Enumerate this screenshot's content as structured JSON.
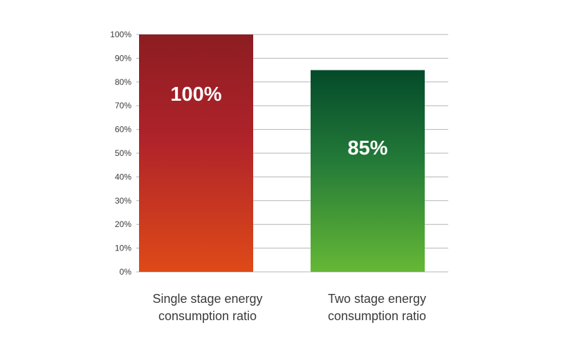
{
  "chart_data": {
    "type": "bar",
    "title": "",
    "xlabel": "",
    "ylabel": "",
    "ylim": [
      0,
      100
    ],
    "yticks": [
      0,
      10,
      20,
      30,
      40,
      50,
      60,
      70,
      80,
      90,
      100
    ],
    "ytick_labels": [
      "0%",
      "10%",
      "20%",
      "30%",
      "40%",
      "50%",
      "60%",
      "70%",
      "80%",
      "90%",
      "100%"
    ],
    "grid": true,
    "legend": "none",
    "categories": [
      [
        "Single stage energy",
        "consumption ratio"
      ],
      [
        "Two stage energy",
        "consumption ratio"
      ]
    ],
    "values": [
      100,
      85
    ],
    "data_labels": [
      "100%",
      "85%"
    ],
    "bar_colors": [
      {
        "top": "#8c1d22",
        "middle": "#b0232a",
        "bottom": "#de4a18"
      },
      {
        "top": "#044a2a",
        "middle": "#237a38",
        "bottom": "#65b835"
      }
    ]
  }
}
